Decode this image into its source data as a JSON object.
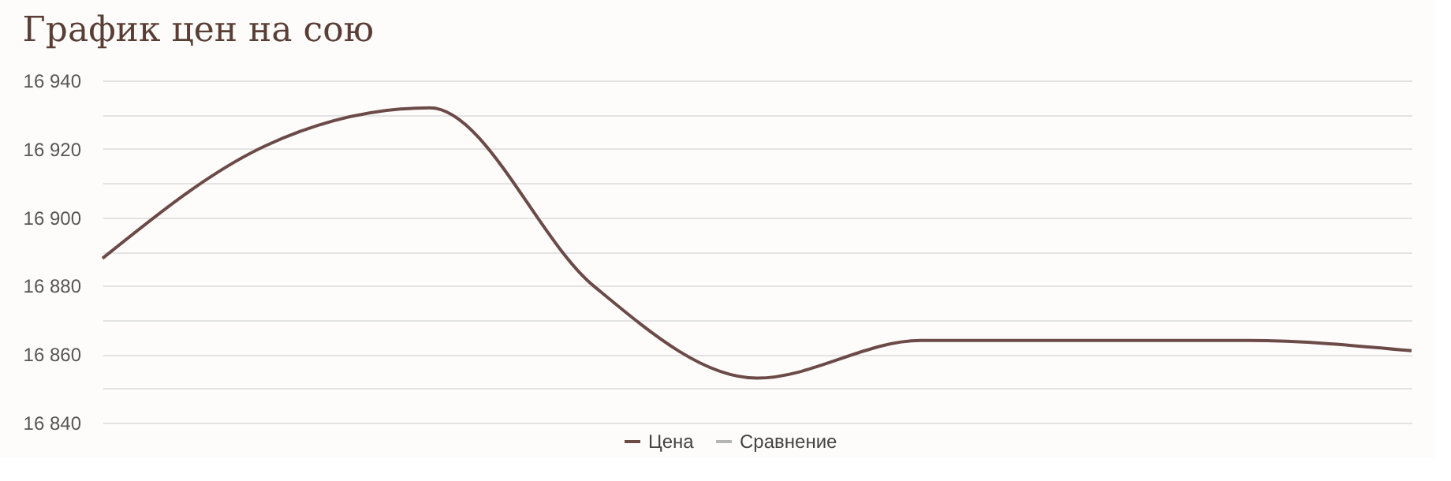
{
  "chart_data": {
    "type": "line",
    "title": "График цен на сою",
    "categories": [
      null,
      null,
      null,
      null,
      null,
      null,
      null,
      null,
      null
    ],
    "series": [
      {
        "name": "Цена",
        "color": "#6b4a48",
        "values": [
          16888,
          16921,
          16932,
          16880,
          16853,
          16864,
          16864,
          16864,
          16861
        ]
      },
      {
        "name": "Сравнение",
        "color": "#b5b5b5",
        "values": [
          null,
          null,
          null,
          null,
          null,
          null,
          null,
          null,
          null
        ]
      }
    ],
    "ylim": [
      16840,
      16940
    ],
    "yticks": [
      {
        "value": 16840,
        "label": "16 840"
      },
      {
        "value": 16850,
        "label": null
      },
      {
        "value": 16860,
        "label": "16 860"
      },
      {
        "value": 16870,
        "label": null
      },
      {
        "value": 16880,
        "label": "16 880"
      },
      {
        "value": 16890,
        "label": null
      },
      {
        "value": 16900,
        "label": "16 900"
      },
      {
        "value": 16910,
        "label": null
      },
      {
        "value": 16920,
        "label": "16 920"
      },
      {
        "value": 16930,
        "label": null
      },
      {
        "value": 16940,
        "label": "16 940"
      }
    ],
    "grid": "y",
    "legend": "bottom",
    "tick_labels": "y",
    "marker": "none",
    "line_style": "solid"
  }
}
